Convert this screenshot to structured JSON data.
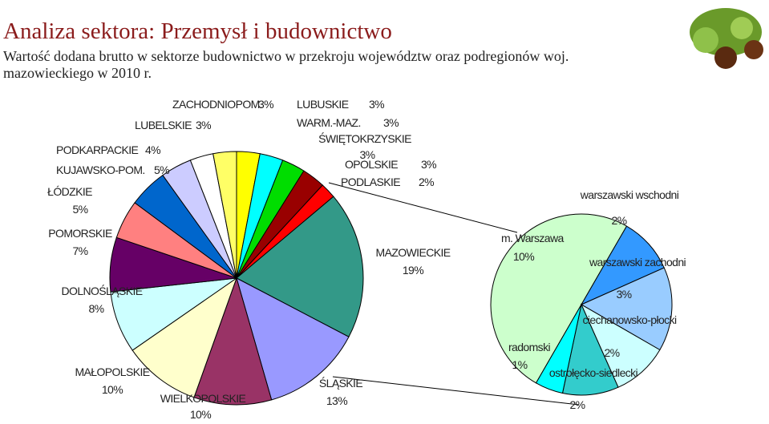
{
  "chart_data": [
    {
      "type": "pie",
      "title": "Analiza sektora: Przemysł i budownictwo",
      "subtitle": "Wartość dodana brutto w sektorze budownictwo w przekroju województw oraz podregionów woj. mazowieckiego w 2010 r.",
      "categories": [
        "LUBUSKIE",
        "WARM.-MAZ.",
        "ŚWIĘTOKRZYSKIE",
        "OPOLSKIE",
        "PODLASKIE",
        "MAZOWIECKIE",
        "ŚLĄSKIE",
        "WIELKOPOLSKIE",
        "MAŁOPOLSKIE",
        "DOLNOŚLĄSKIE",
        "POMORSKIE",
        "ŁÓDZKIE",
        "KUJAWSKO-POM.",
        "PODKARPACKIE",
        "LUBELSKIE",
        "ZACHODNIOPOM."
      ],
      "values": [
        3,
        3,
        3,
        3,
        2,
        19,
        13,
        10,
        10,
        8,
        7,
        5,
        5,
        4,
        3,
        3
      ],
      "value_labels": [
        "3%",
        "3%",
        "3%",
        "3%",
        "2%",
        "19%",
        "13%",
        "10%",
        "10%",
        "8%",
        "7%",
        "5%",
        "5%",
        "4%",
        "3%",
        "3%"
      ],
      "colors": [
        "#ffff00",
        "#00ffff",
        "#00dd00",
        "#990000",
        "#ff0000",
        "#339988",
        "#9999ff",
        "#993366",
        "#ffffcc",
        "#ccffff",
        "#660066",
        "#ff8080",
        "#0066cc",
        "#ccccff",
        "#ffffff",
        "#ffff66"
      ]
    },
    {
      "type": "pie",
      "categories": [
        "m. Warszawa",
        "warszawski wschodni",
        "warszawski zachodni",
        "ciechanowsko-płocki",
        "ostrołęcko-siedlecki",
        "radomski"
      ],
      "values": [
        10,
        2,
        3,
        2,
        2,
        1
      ],
      "value_labels": [
        "10%",
        "2%",
        "3%",
        "2%",
        "2%",
        "1%"
      ],
      "colors": [
        "#ccffcc",
        "#3399ff",
        "#99ccff",
        "#ccffff",
        "#33cccc",
        "#00ffff"
      ]
    }
  ]
}
